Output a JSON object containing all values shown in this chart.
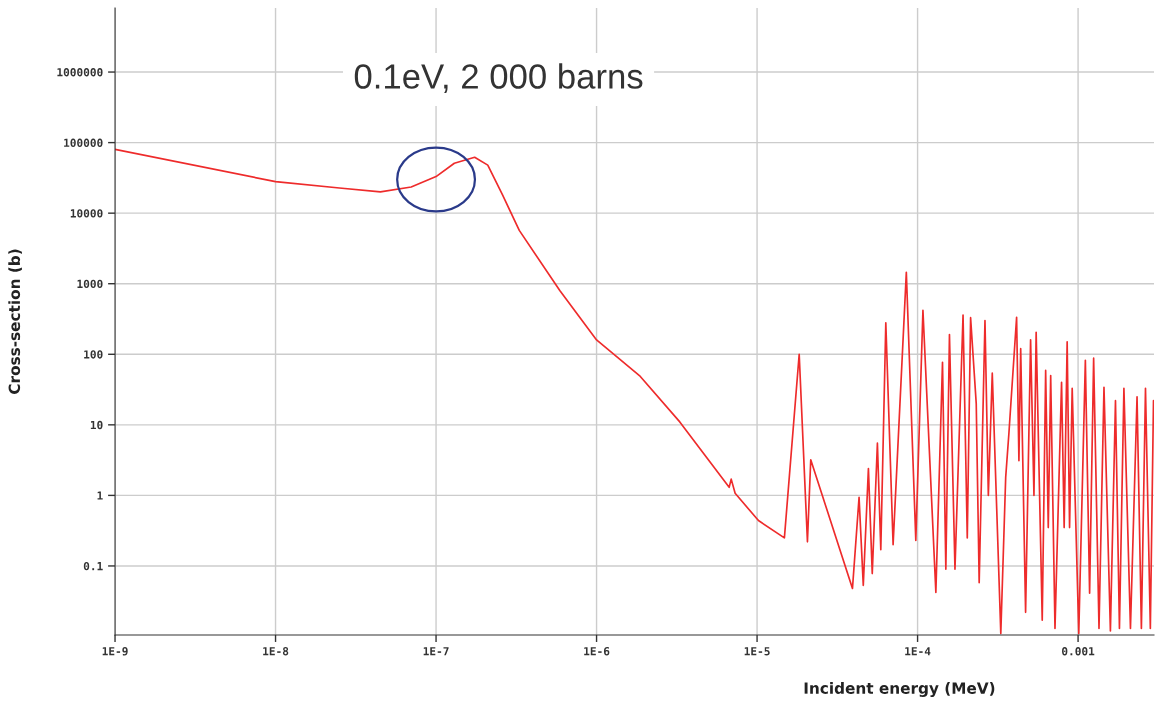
{
  "chart_data": {
    "type": "line",
    "xlabel": "Incident energy (MeV)",
    "ylabel": "Cross-section (b)",
    "log": "xy",
    "grid": true,
    "xlim": [
      1e-09,
      0.00297
    ],
    "ylim": [
      0.0105,
      8100000
    ],
    "xticks": [
      {
        "value": 1e-09,
        "label": "1E-9"
      },
      {
        "value": 1e-08,
        "label": "1E-8"
      },
      {
        "value": 1e-07,
        "label": "1E-7"
      },
      {
        "value": 1e-06,
        "label": "1E-6"
      },
      {
        "value": 1e-05,
        "label": "1E-5"
      },
      {
        "value": 0.0001,
        "label": "1E-4"
      },
      {
        "value": 0.001,
        "label": "0.001"
      }
    ],
    "yticks": [
      0.1,
      1,
      10,
      100,
      1000,
      10000,
      100000,
      1000000
    ],
    "annotations": [
      {
        "text": "0.1eV, 2 000 barns",
        "x": 1e-07,
        "y": 30000
      }
    ],
    "series": [
      {
        "color": "#ee2b2b",
        "x": [
          1e-09,
          1e-08,
          2.5e-08,
          4.5e-08,
          7e-08,
          1e-07,
          1.3e-07,
          1.74e-07,
          2.1e-07,
          2.6e-07,
          3.3e-07,
          5.9e-07,
          1e-06,
          1.85e-06,
          3.3e-06,
          6.7e-06,
          6.9e-06,
          7.3e-06,
          1.02e-05,
          1.48e-05,
          1.83e-05,
          2.06e-05,
          2.16e-05,
          3.93e-05,
          4.32e-05,
          4.59e-05,
          4.94e-05,
          5.22e-05,
          5.62e-05,
          5.9e-05,
          6.34e-05,
          7.04e-05,
          8.51e-05,
          9.75e-05,
          0.000108,
          0.00013,
          0.000143,
          0.00015,
          0.000158,
          0.000171,
          0.000192,
          0.000204,
          0.000214,
          0.000232,
          0.000242,
          0.000263,
          0.000276,
          0.000292,
          0.00033,
          0.000354,
          0.000371,
          0.000414,
          0.000428,
          0.000439,
          0.000471,
          0.000506,
          0.000531,
          0.000548,
          0.000598,
          0.000628,
          0.000652,
          0.000675,
          0.000718,
          0.000789,
          0.000819,
          0.000855,
          0.000885,
          0.000919,
          0.00101,
          0.00111,
          0.00118,
          0.00125,
          0.00135,
          0.00145,
          0.00159,
          0.00171,
          0.00181,
          0.00193,
          0.00212,
          0.00233,
          0.00248,
          0.00263,
          0.00282,
          0.00295
        ],
        "values": [
          80000,
          28000,
          22700,
          20000,
          23500,
          33000,
          51000,
          62000,
          48000,
          18000,
          5700,
          800,
          160,
          50,
          11,
          1.3,
          1.7,
          1.07,
          0.44,
          0.25,
          100,
          0.22,
          3.2,
          0.048,
          0.94,
          0.053,
          2.4,
          0.078,
          5.5,
          0.17,
          280,
          0.2,
          1450,
          0.23,
          420,
          0.042,
          77,
          0.09,
          190,
          0.09,
          360,
          0.25,
          330,
          20,
          0.058,
          300,
          1,
          54,
          0.011,
          1.8,
          7.8,
          335,
          3.1,
          120,
          0.022,
          160,
          1,
          205,
          0.017,
          59,
          0.35,
          50,
          0.013,
          40,
          0.35,
          150,
          0.35,
          33,
          0.011,
          82,
          0.041,
          88,
          0.013,
          34,
          0.012,
          22,
          0.013,
          33,
          0.013,
          25,
          0.013,
          33,
          0.013,
          22
        ]
      }
    ]
  }
}
